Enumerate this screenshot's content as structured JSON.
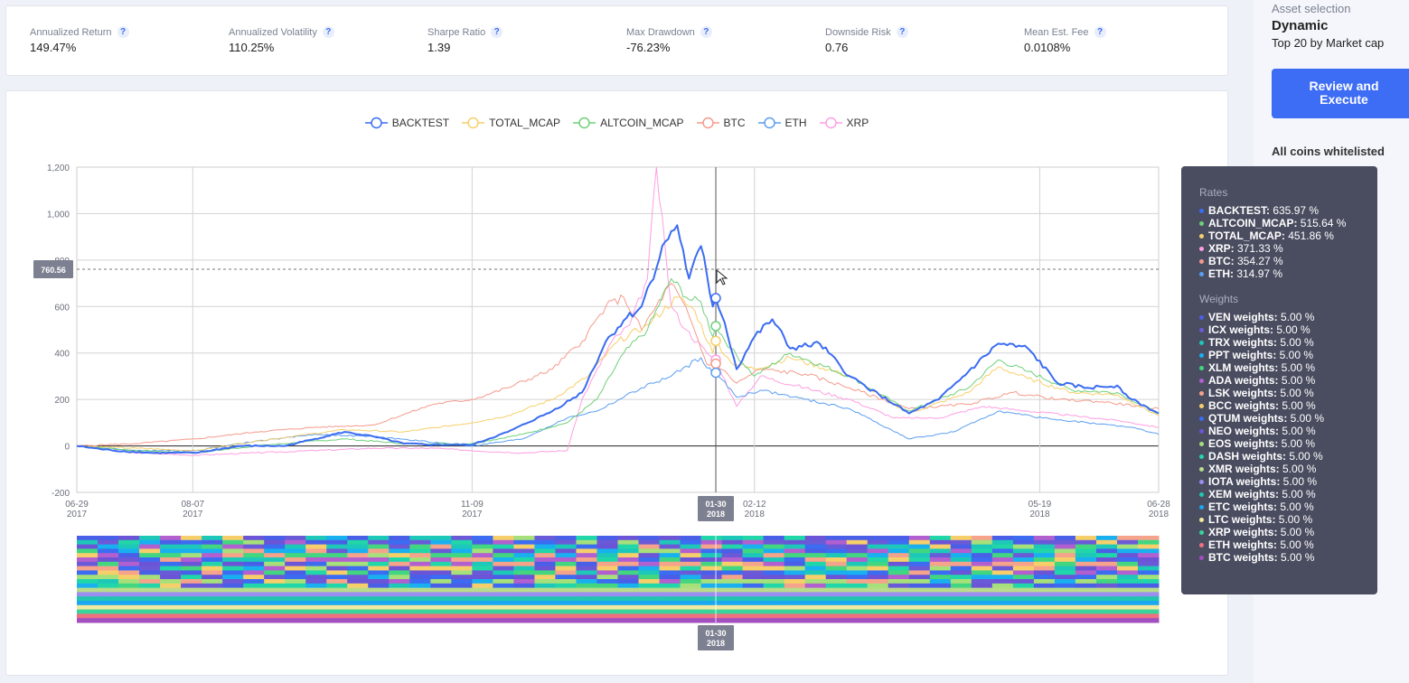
{
  "metrics": [
    {
      "label": "Annualized Return",
      "value": "149.47%"
    },
    {
      "label": "Annualized Volatility",
      "value": "110.25%"
    },
    {
      "label": "Sharpe Ratio",
      "value": "1.39"
    },
    {
      "label": "Max Drawdown",
      "value": "-76.23%"
    },
    {
      "label": "Downside Risk",
      "value": "0.76"
    },
    {
      "label": "Mean Est. Fee",
      "value": "0.0108%"
    }
  ],
  "help_glyph": "?",
  "sidebar": {
    "asset_selection_label": "Asset selection",
    "mode": "Dynamic",
    "universe": "Top 20 by Market cap",
    "execute_line1": "Review and",
    "execute_line2": "Execute",
    "whitelist": "All coins whitelisted"
  },
  "crosshair": {
    "y_value": "760.56",
    "date_md": "01-30",
    "date_y": "2018"
  },
  "tooltip": {
    "rates_header": "Rates",
    "rates": [
      {
        "name": "BACKTEST",
        "value": "635.97 %",
        "color": "#3b6cf2"
      },
      {
        "name": "ALTCOIN_MCAP",
        "value": "515.64 %",
        "color": "#6fd07a"
      },
      {
        "name": "TOTAL_MCAP",
        "value": "451.86 %",
        "color": "#f7cf6a"
      },
      {
        "name": "XRP",
        "value": "371.33 %",
        "color": "#ff9ee2"
      },
      {
        "name": "BTC",
        "value": "354.27 %",
        "color": "#f59a8b"
      },
      {
        "name": "ETH",
        "value": "314.97 %",
        "color": "#5b9ef2"
      }
    ],
    "weights_header": "Weights",
    "weights": [
      {
        "name": "VEN weights",
        "value": "5.00 %",
        "color": "#4a5fe8"
      },
      {
        "name": "ICX weights",
        "value": "5.00 %",
        "color": "#6a5ad8"
      },
      {
        "name": "TRX weights",
        "value": "5.00 %",
        "color": "#1ec8b8"
      },
      {
        "name": "PPT weights",
        "value": "5.00 %",
        "color": "#19b0f0"
      },
      {
        "name": "XLM weights",
        "value": "5.00 %",
        "color": "#42d680"
      },
      {
        "name": "ADA weights",
        "value": "5.00 %",
        "color": "#b25fd0"
      },
      {
        "name": "LSK weights",
        "value": "5.00 %",
        "color": "#f5a38a"
      },
      {
        "name": "BCC weights",
        "value": "5.00 %",
        "color": "#f7cf6a"
      },
      {
        "name": "QTUM weights",
        "value": "5.00 %",
        "color": "#3b6cf2"
      },
      {
        "name": "NEO weights",
        "value": "5.00 %",
        "color": "#6b55d6"
      },
      {
        "name": "EOS weights",
        "value": "5.00 %",
        "color": "#a6e07a"
      },
      {
        "name": "DASH weights",
        "value": "5.00 %",
        "color": "#21d6a8"
      },
      {
        "name": "XMR weights",
        "value": "5.00 %",
        "color": "#b8dc8a"
      },
      {
        "name": "IOTA weights",
        "value": "5.00 %",
        "color": "#9a8ef0"
      },
      {
        "name": "XEM weights",
        "value": "5.00 %",
        "color": "#20c6b0"
      },
      {
        "name": "ETC weights",
        "value": "5.00 %",
        "color": "#1aa8f0"
      },
      {
        "name": "LTC weights",
        "value": "5.00 %",
        "color": "#f3e9a0"
      },
      {
        "name": "XRP weights",
        "value": "5.00 %",
        "color": "#3ad49a"
      },
      {
        "name": "ETH weights",
        "value": "5.00 %",
        "color": "#f07080"
      },
      {
        "name": "BTC weights",
        "value": "5.00 %",
        "color": "#a24fc0"
      }
    ]
  },
  "chart_data": {
    "type": "line",
    "title": "",
    "ylim": [
      -200,
      1200
    ],
    "yticks": [
      "-200",
      "0",
      "200",
      "400",
      "600",
      "800",
      "1,000",
      "1,200"
    ],
    "ytick_values": [
      -200,
      0,
      200,
      400,
      600,
      800,
      1000,
      1200
    ],
    "xticks": [
      {
        "md": "06-29",
        "y": "2017",
        "i": 0
      },
      {
        "md": "08-07",
        "y": "2017",
        "i": 39
      },
      {
        "md": "11-09",
        "y": "2017",
        "i": 133
      },
      {
        "md": "02-12",
        "y": "2018",
        "i": 228
      },
      {
        "md": "05-19",
        "y": "2018",
        "i": 324
      },
      {
        "md": "06-28",
        "y": "2018",
        "i": 364
      }
    ],
    "crosshair_index": 215,
    "grid": true,
    "legend_position": "top-center",
    "series": [
      {
        "name": "BACKTEST",
        "color": "#3b6cf2",
        "width": 2,
        "anchors": [
          [
            0,
            0
          ],
          [
            12,
            -20
          ],
          [
            25,
            -30
          ],
          [
            40,
            -30
          ],
          [
            55,
            0
          ],
          [
            70,
            0
          ],
          [
            80,
            30
          ],
          [
            90,
            60
          ],
          [
            100,
            40
          ],
          [
            110,
            10
          ],
          [
            120,
            5
          ],
          [
            133,
            5
          ],
          [
            145,
            60
          ],
          [
            160,
            150
          ],
          [
            170,
            230
          ],
          [
            178,
            450
          ],
          [
            184,
            540
          ],
          [
            190,
            600
          ],
          [
            198,
            880
          ],
          [
            202,
            950
          ],
          [
            206,
            720
          ],
          [
            210,
            860
          ],
          [
            214,
            600
          ],
          [
            215,
            636
          ],
          [
            218,
            530
          ],
          [
            222,
            330
          ],
          [
            228,
            470
          ],
          [
            234,
            545
          ],
          [
            240,
            420
          ],
          [
            250,
            440
          ],
          [
            260,
            300
          ],
          [
            270,
            220
          ],
          [
            280,
            140
          ],
          [
            290,
            200
          ],
          [
            300,
            320
          ],
          [
            310,
            440
          ],
          [
            320,
            420
          ],
          [
            330,
            270
          ],
          [
            340,
            250
          ],
          [
            350,
            260
          ],
          [
            355,
            200
          ],
          [
            364,
            140
          ]
        ]
      },
      {
        "name": "ALTCOIN_MCAP",
        "color": "#6fd07a",
        "width": 1,
        "anchors": [
          [
            0,
            0
          ],
          [
            20,
            -20
          ],
          [
            40,
            -30
          ],
          [
            60,
            0
          ],
          [
            90,
            30
          ],
          [
            110,
            10
          ],
          [
            133,
            10
          ],
          [
            150,
            50
          ],
          [
            165,
            100
          ],
          [
            175,
            200
          ],
          [
            184,
            400
          ],
          [
            192,
            500
          ],
          [
            200,
            720
          ],
          [
            206,
            630
          ],
          [
            210,
            620
          ],
          [
            214,
            470
          ],
          [
            215,
            516
          ],
          [
            220,
            420
          ],
          [
            228,
            300
          ],
          [
            240,
            400
          ],
          [
            260,
            300
          ],
          [
            280,
            150
          ],
          [
            300,
            250
          ],
          [
            310,
            370
          ],
          [
            320,
            320
          ],
          [
            335,
            240
          ],
          [
            350,
            230
          ],
          [
            364,
            140
          ]
        ]
      },
      {
        "name": "TOTAL_MCAP",
        "color": "#f7cf6a",
        "width": 1,
        "anchors": [
          [
            0,
            0
          ],
          [
            20,
            -10
          ],
          [
            40,
            -20
          ],
          [
            60,
            20
          ],
          [
            90,
            70
          ],
          [
            110,
            60
          ],
          [
            133,
            100
          ],
          [
            145,
            130
          ],
          [
            160,
            200
          ],
          [
            172,
            300
          ],
          [
            182,
            450
          ],
          [
            192,
            520
          ],
          [
            202,
            640
          ],
          [
            208,
            580
          ],
          [
            214,
            400
          ],
          [
            215,
            452
          ],
          [
            220,
            360
          ],
          [
            228,
            330
          ],
          [
            240,
            380
          ],
          [
            260,
            300
          ],
          [
            280,
            140
          ],
          [
            300,
            230
          ],
          [
            310,
            340
          ],
          [
            320,
            290
          ],
          [
            335,
            230
          ],
          [
            350,
            220
          ],
          [
            364,
            130
          ]
        ]
      },
      {
        "name": "BTC",
        "color": "#f59a8b",
        "width": 1,
        "anchors": [
          [
            0,
            0
          ],
          [
            20,
            10
          ],
          [
            40,
            30
          ],
          [
            60,
            60
          ],
          [
            80,
            80
          ],
          [
            100,
            90
          ],
          [
            120,
            180
          ],
          [
            133,
            200
          ],
          [
            145,
            250
          ],
          [
            160,
            330
          ],
          [
            170,
            450
          ],
          [
            178,
            600
          ],
          [
            184,
            640
          ],
          [
            190,
            500
          ],
          [
            200,
            700
          ],
          [
            206,
            560
          ],
          [
            212,
            350
          ],
          [
            215,
            354
          ],
          [
            222,
            270
          ],
          [
            230,
            330
          ],
          [
            245,
            310
          ],
          [
            260,
            250
          ],
          [
            280,
            160
          ],
          [
            300,
            180
          ],
          [
            315,
            230
          ],
          [
            330,
            200
          ],
          [
            345,
            190
          ],
          [
            364,
            160
          ]
        ]
      },
      {
        "name": "ETH",
        "color": "#5b9ef2",
        "width": 1,
        "anchors": [
          [
            0,
            0
          ],
          [
            20,
            -20
          ],
          [
            40,
            -20
          ],
          [
            60,
            20
          ],
          [
            80,
            50
          ],
          [
            100,
            40
          ],
          [
            133,
            0
          ],
          [
            150,
            30
          ],
          [
            165,
            120
          ],
          [
            175,
            150
          ],
          [
            190,
            250
          ],
          [
            200,
            300
          ],
          [
            210,
            380
          ],
          [
            214,
            310
          ],
          [
            215,
            315
          ],
          [
            222,
            210
          ],
          [
            230,
            240
          ],
          [
            245,
            200
          ],
          [
            260,
            160
          ],
          [
            280,
            30
          ],
          [
            295,
            60
          ],
          [
            310,
            150
          ],
          [
            325,
            120
          ],
          [
            340,
            100
          ],
          [
            355,
            80
          ],
          [
            364,
            50
          ]
        ]
      },
      {
        "name": "XRP",
        "color": "#ff9ee2",
        "width": 1,
        "anchors": [
          [
            0,
            0
          ],
          [
            20,
            -30
          ],
          [
            40,
            -40
          ],
          [
            60,
            -30
          ],
          [
            80,
            -20
          ],
          [
            100,
            -10
          ],
          [
            120,
            -10
          ],
          [
            133,
            -20
          ],
          [
            150,
            -30
          ],
          [
            165,
            -20
          ],
          [
            170,
            200
          ],
          [
            180,
            450
          ],
          [
            186,
            520
          ],
          [
            192,
            720
          ],
          [
            195,
            1200
          ],
          [
            200,
            600
          ],
          [
            205,
            500
          ],
          [
            212,
            400
          ],
          [
            215,
            371
          ],
          [
            222,
            170
          ],
          [
            230,
            300
          ],
          [
            245,
            250
          ],
          [
            260,
            200
          ],
          [
            275,
            120
          ],
          [
            290,
            120
          ],
          [
            305,
            170
          ],
          [
            320,
            150
          ],
          [
            335,
            130
          ],
          [
            350,
            110
          ],
          [
            364,
            80
          ]
        ]
      }
    ]
  }
}
